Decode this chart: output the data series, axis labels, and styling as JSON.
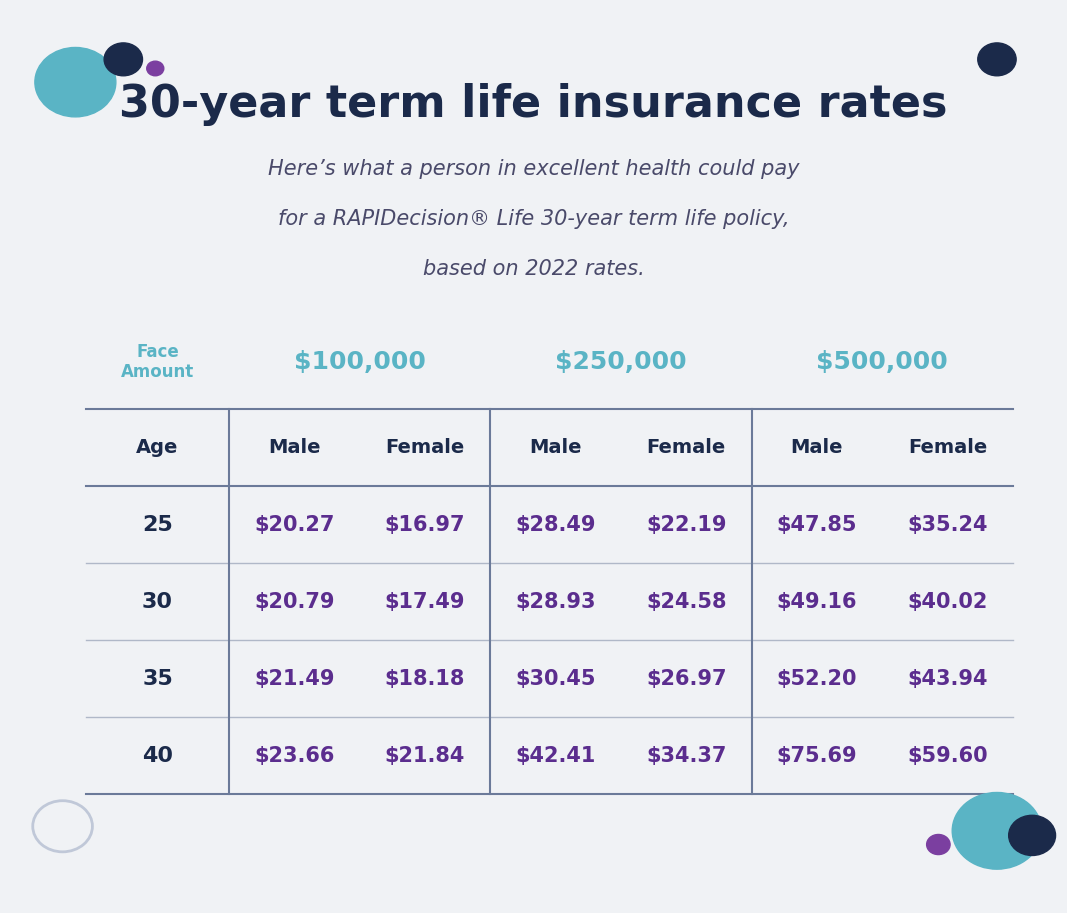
{
  "title": "30-year term life insurance rates",
  "subtitle_line1": "Here’s what a person in excellent health could pay",
  "subtitle_line2": "for a RAPIDecision® Life 30-year term life policy,",
  "subtitle_line3": "based on 2022 rates.",
  "background_color": "#F0F2F5",
  "face_amounts": [
    "$100,000",
    "$250,000",
    "$500,000"
  ],
  "face_amount_color": "#5AB4C5",
  "face_amount_label": "Face\nAmount",
  "face_amount_label_color": "#5AB4C5",
  "col_headers": [
    "Age",
    "Male",
    "Female",
    "Male",
    "Female",
    "Male",
    "Female"
  ],
  "col_header_color": "#1B2A4A",
  "ages": [
    "25",
    "30",
    "35",
    "40"
  ],
  "data": [
    [
      "$20.27",
      "$16.97",
      "$28.49",
      "$22.19",
      "$47.85",
      "$35.24"
    ],
    [
      "$20.79",
      "$17.49",
      "$28.93",
      "$24.58",
      "$49.16",
      "$40.02"
    ],
    [
      "$21.49",
      "$18.18",
      "$30.45",
      "$26.97",
      "$52.20",
      "$43.94"
    ],
    [
      "$23.66",
      "$21.84",
      "$42.41",
      "$34.37",
      "$75.69",
      "$59.60"
    ]
  ],
  "data_color": "#5B2D8E",
  "age_color": "#1B2A4A",
  "line_color": "#B0B8C8",
  "thick_line_color": "#6B7A99",
  "title_color": "#1B2A4A",
  "subtitle_color": "#4A4A6A",
  "dot_colors": {
    "teal_large": "#5AB4C5",
    "navy_medium": "#1B2A4A",
    "purple_small": "#7B3FA0"
  },
  "circle_outline": "#FFFFFF"
}
